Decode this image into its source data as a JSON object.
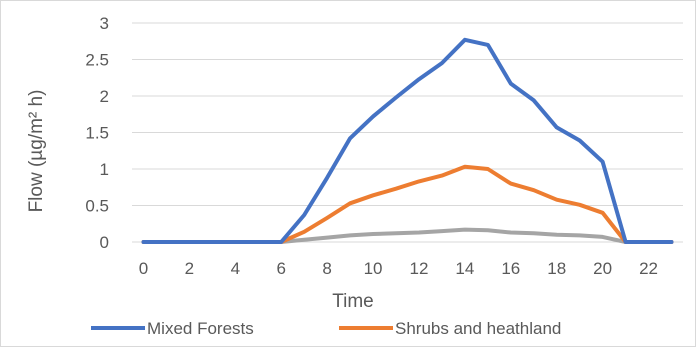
{
  "chart_data": {
    "type": "line",
    "title": "",
    "xlabel": "Time",
    "ylabel": "Flow (µg/m² h)",
    "xlim": [
      -0.5,
      23.5
    ],
    "ylim": [
      0,
      3
    ],
    "x_ticks": [
      0,
      2,
      4,
      6,
      8,
      10,
      12,
      14,
      16,
      18,
      20,
      22
    ],
    "y_ticks": [
      0,
      0.5,
      1,
      1.5,
      2,
      2.5,
      3
    ],
    "y_tick_labels": [
      "0",
      "0.5",
      "1",
      "1.5",
      "2",
      "2.5",
      "3"
    ],
    "grid": "horizontal",
    "legend_position": "bottom",
    "x": [
      0,
      1,
      2,
      3,
      4,
      5,
      6,
      7,
      8,
      9,
      10,
      11,
      12,
      13,
      14,
      15,
      16,
      17,
      18,
      19,
      20,
      21,
      22,
      23
    ],
    "series": [
      {
        "name": "Mixed Forests",
        "color": "#4472c4",
        "values": [
          0,
          0,
          0,
          0,
          0,
          0,
          0,
          0.37,
          0.88,
          1.42,
          1.72,
          1.98,
          2.23,
          2.45,
          2.77,
          2.7,
          2.17,
          1.94,
          1.57,
          1.39,
          1.1,
          0,
          0,
          0
        ]
      },
      {
        "name": "Shrubs and heathland",
        "color": "#ed7d31",
        "values": [
          0,
          0,
          0,
          0,
          0,
          0,
          0,
          0.14,
          0.33,
          0.53,
          0.64,
          0.73,
          0.83,
          0.91,
          1.03,
          1.0,
          0.8,
          0.71,
          0.58,
          0.51,
          0.4,
          0,
          0,
          0
        ]
      },
      {
        "name": "",
        "color": "#a5a5a5",
        "values": [
          0,
          0,
          0,
          0,
          0,
          0,
          0,
          0.03,
          0.06,
          0.09,
          0.11,
          0.12,
          0.13,
          0.15,
          0.17,
          0.16,
          0.13,
          0.12,
          0.1,
          0.09,
          0.07,
          0,
          0,
          0
        ]
      }
    ]
  }
}
